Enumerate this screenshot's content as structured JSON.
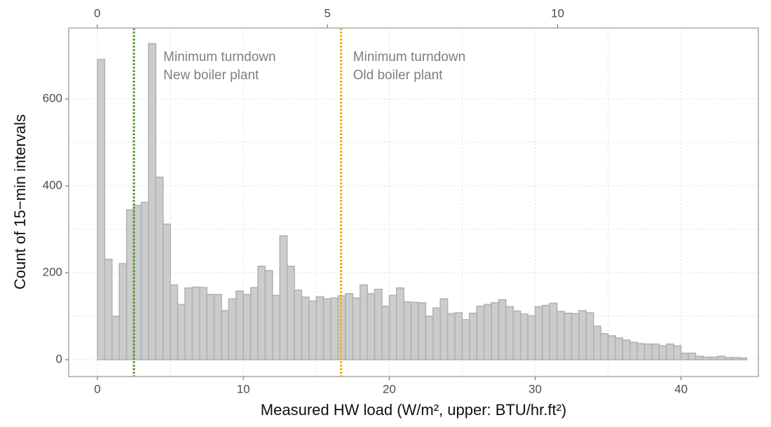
{
  "chart_data": {
    "type": "histogram",
    "x_label": "Measured HW load (W/m², upper: BTU/hr.ft²)",
    "y_label": "Count of 15−min intervals",
    "bins": [
      0,
      0.5,
      1,
      1.5,
      2,
      2.5,
      3,
      3.5,
      4,
      4.5,
      5,
      5.5,
      6,
      6.5,
      7,
      7.5,
      8,
      8.5,
      9,
      9.5,
      10,
      10.5,
      11,
      11.5,
      12,
      12.5,
      13,
      13.5,
      14,
      14.5,
      15,
      15.5,
      16,
      16.5,
      17,
      17.5,
      18,
      18.5,
      19,
      19.5,
      20,
      20.5,
      21,
      21.5,
      22,
      22.5,
      23,
      23.5,
      24,
      24.5,
      25,
      25.5,
      26,
      26.5,
      27,
      27.5,
      28,
      28.5,
      29,
      29.5,
      30,
      30.5,
      31,
      31.5,
      32,
      32.5,
      33,
      33.5,
      34,
      34.5,
      35,
      35.5,
      36,
      36.5,
      37,
      37.5,
      38,
      38.5,
      39,
      39.5,
      40,
      40.5,
      41,
      41.5,
      42,
      42.5,
      43,
      43.5,
      44,
      44.5
    ],
    "counts": [
      691,
      231,
      100,
      221,
      345,
      355,
      362,
      727,
      420,
      312,
      172,
      127,
      165,
      167,
      166,
      150,
      150,
      113,
      140,
      158,
      150,
      166,
      215,
      205,
      148,
      285,
      215,
      160,
      144,
      135,
      145,
      140,
      142,
      147,
      152,
      142,
      172,
      152,
      162,
      123,
      148,
      165,
      133,
      132,
      131,
      100,
      119,
      140,
      106,
      108,
      92,
      107,
      123,
      127,
      131,
      138,
      122,
      112,
      105,
      101,
      122,
      125,
      130,
      111,
      107,
      106,
      113,
      108,
      77,
      60,
      55,
      50,
      45,
      40,
      37,
      36,
      36,
      32,
      36,
      32,
      15,
      15,
      8,
      6,
      6,
      8,
      5,
      5,
      4
    ],
    "color": "#cccccc",
    "edge_color": "#b0b0b0",
    "xlim": [
      -1.97,
      45.3
    ],
    "xticks": [
      0,
      10,
      20,
      30,
      40
    ],
    "x2lim": [
      -0.62,
      14.36
    ],
    "x2ticks": [
      0,
      5,
      10
    ],
    "ylim": [
      -38.7,
      763
    ],
    "yticks": [
      0,
      200,
      400,
      600
    ],
    "grid": true,
    "vlines": [
      {
        "x": 2.5,
        "color": "#5a9a3a",
        "label": [
          "Minimum turndown",
          "New boiler plant"
        ]
      },
      {
        "x": 16.7,
        "color": "#f0b400",
        "label": [
          "Minimum turndown",
          "Old boiler plant"
        ]
      }
    ]
  }
}
